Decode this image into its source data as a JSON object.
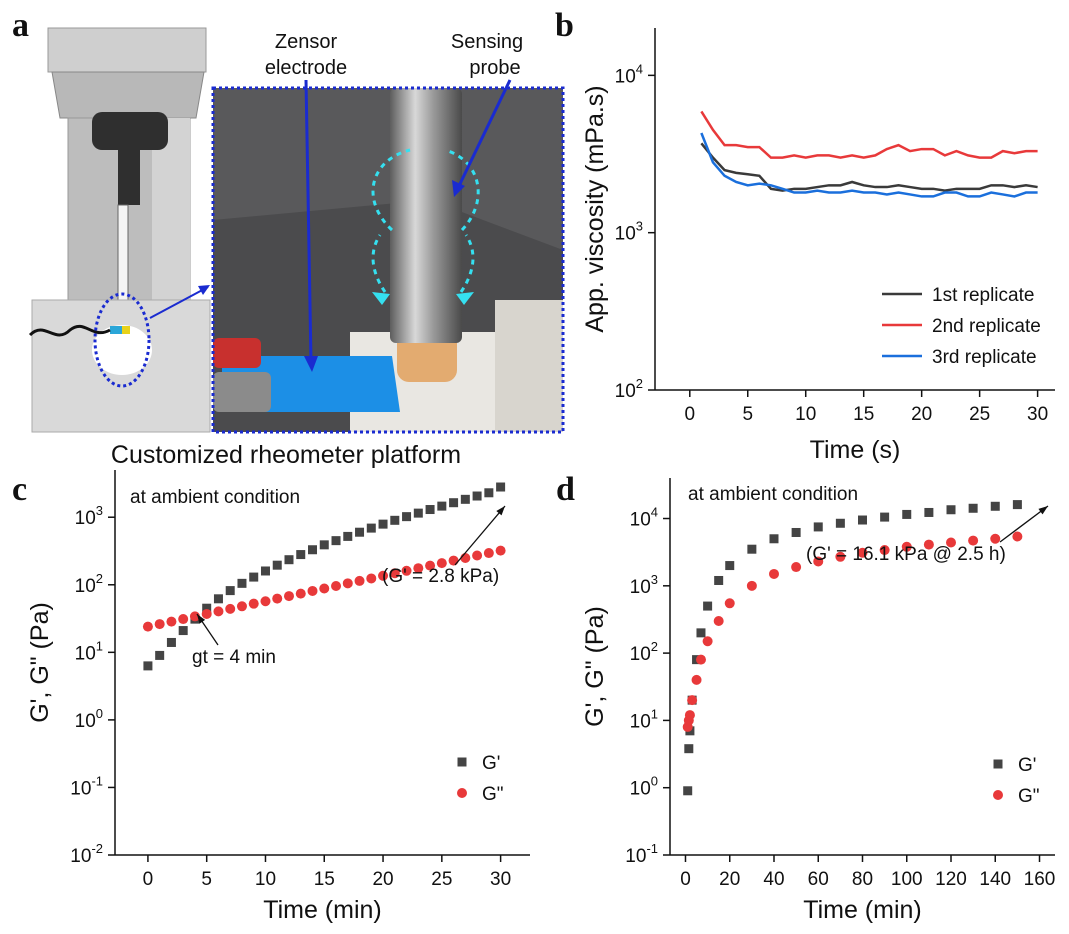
{
  "illustration": {
    "panel_label": "a",
    "zensor_electrode": [
      "Zensor",
      "electrode"
    ],
    "sensing_probe": [
      "Sensing",
      "probe"
    ],
    "caption": "Customized rheometer platform"
  },
  "chart_data": [
    {
      "type": "line",
      "panel_label": "b",
      "x_label": "Time (s)",
      "y_label": "App. viscosity (mPa.s)",
      "x": [
        1,
        2,
        3,
        4,
        5,
        6,
        7,
        8,
        9,
        10,
        11,
        12,
        13,
        14,
        15,
        16,
        17,
        18,
        19,
        20,
        21,
        22,
        23,
        24,
        25,
        26,
        27,
        28,
        29,
        30
      ],
      "series": [
        {
          "name": "1st replicate",
          "color": "#3a3a3a",
          "values": [
            3700,
            3000,
            2500,
            2400,
            2350,
            2300,
            1900,
            1850,
            1900,
            1900,
            1950,
            2000,
            2000,
            2100,
            2000,
            1950,
            1950,
            2000,
            1950,
            1900,
            1900,
            1850,
            1900,
            1900,
            1900,
            2000,
            2000,
            1950,
            2000,
            1950
          ]
        },
        {
          "name": "2nd replicate",
          "color": "#e8393a",
          "values": [
            5900,
            4500,
            3600,
            3600,
            3500,
            3500,
            3000,
            3000,
            3100,
            3000,
            3100,
            3100,
            3000,
            3100,
            3000,
            3100,
            3400,
            3600,
            3300,
            3400,
            3400,
            3100,
            3300,
            3100,
            3000,
            3000,
            3300,
            3200,
            3300,
            3300
          ]
        },
        {
          "name": "3rd replicate",
          "color": "#1a6fdc",
          "values": [
            4300,
            2800,
            2300,
            2100,
            2000,
            2050,
            2000,
            1900,
            1800,
            1800,
            1850,
            1800,
            1800,
            1850,
            1800,
            1800,
            1750,
            1800,
            1750,
            1700,
            1700,
            1800,
            1800,
            1700,
            1700,
            1800,
            1750,
            1700,
            1800,
            1800
          ]
        }
      ],
      "xlim": [
        -3,
        31.5
      ],
      "ylim": [
        100,
        20000
      ],
      "yscale": "log",
      "xticks": [
        0,
        5,
        10,
        15,
        20,
        25,
        30
      ],
      "yticks": [
        {
          "value": 100,
          "label": "10^2"
        },
        {
          "value": 1000,
          "label": "10^3"
        },
        {
          "value": 10000,
          "label": "10^4"
        }
      ],
      "legend": "lower right"
    },
    {
      "type": "scatter",
      "panel_label": "c",
      "x_label": "Time (min)",
      "y_label": "G', G\" (Pa)",
      "annotations": [
        "at ambient condition",
        "(G' = 2.8 kPa)",
        "gt = 4 min"
      ],
      "x": [
        0,
        1,
        2,
        3,
        4,
        5,
        6,
        7,
        8,
        9,
        10,
        11,
        12,
        13,
        14,
        15,
        16,
        17,
        18,
        19,
        20,
        21,
        22,
        23,
        24,
        25,
        26,
        27,
        28,
        29,
        30
      ],
      "series": [
        {
          "name": "G'",
          "color": "#444444",
          "marker": "square",
          "values": [
            6.3,
            9,
            14,
            21,
            31,
            45,
            62,
            82,
            105,
            130,
            160,
            195,
            235,
            280,
            330,
            390,
            450,
            520,
            600,
            690,
            790,
            900,
            1020,
            1150,
            1300,
            1460,
            1640,
            1840,
            2060,
            2300,
            2800
          ]
        },
        {
          "name": "G\"",
          "color": "#e8393a",
          "marker": "circle",
          "values": [
            24,
            26.2,
            28.5,
            31.1,
            34,
            37,
            40.4,
            44,
            48,
            52.5,
            57,
            62.5,
            68,
            74,
            81,
            88,
            96,
            105,
            114,
            124,
            136,
            148,
            161,
            176,
            192,
            209,
            228,
            249,
            271,
            295,
            320
          ]
        }
      ],
      "xlim": [
        -2.8,
        32.5
      ],
      "ylim": [
        0.01,
        5000
      ],
      "yscale": "log",
      "xticks": [
        0,
        5,
        10,
        15,
        20,
        25,
        30
      ],
      "yticks": [
        {
          "value": 0.01,
          "label": "10^-2"
        },
        {
          "value": 0.1,
          "label": "10^-1"
        },
        {
          "value": 1,
          "label": "10^0"
        },
        {
          "value": 10,
          "label": "10^1"
        },
        {
          "value": 100,
          "label": "10^2"
        },
        {
          "value": 1000,
          "label": "10^3"
        }
      ],
      "legend": "lower right"
    },
    {
      "type": "scatter",
      "panel_label": "d",
      "x_label": "Time (min)",
      "y_label": "G', G\" (Pa)",
      "annotations": [
        "at ambient condition",
        "(G' = 16.1 kPa @ 2.5 h)"
      ],
      "x": [
        1,
        1.5,
        2,
        3,
        5,
        7,
        10,
        15,
        20,
        30,
        40,
        50,
        60,
        70,
        80,
        90,
        100,
        110,
        120,
        130,
        140,
        150
      ],
      "series": [
        {
          "name": "G'",
          "color": "#444444",
          "marker": "square",
          "values": [
            0.9,
            3.8,
            7,
            20,
            80,
            200,
            500,
            1200,
            2000,
            3500,
            5000,
            6200,
            7500,
            8500,
            9500,
            10500,
            11500,
            12300,
            13500,
            14200,
            15200,
            16100
          ]
        },
        {
          "name": "G\"",
          "color": "#e8393a",
          "marker": "circle",
          "values": [
            8,
            10,
            12,
            20,
            40,
            80,
            150,
            300,
            550,
            1000,
            1500,
            1900,
            2300,
            2700,
            3100,
            3400,
            3800,
            4100,
            4400,
            4700,
            5000,
            5400
          ]
        }
      ],
      "xlim": [
        -7,
        167
      ],
      "ylim": [
        0.1,
        40000
      ],
      "yscale": "log",
      "xticks": [
        0,
        20,
        40,
        60,
        80,
        100,
        120,
        140,
        160
      ],
      "yticks": [
        {
          "value": 0.1,
          "label": "10^-1"
        },
        {
          "value": 1,
          "label": "10^0"
        },
        {
          "value": 10,
          "label": "10^1"
        },
        {
          "value": 100,
          "label": "10^2"
        },
        {
          "value": 1000,
          "label": "10^3"
        },
        {
          "value": 10000,
          "label": "10^4"
        }
      ],
      "legend": "lower right"
    }
  ]
}
